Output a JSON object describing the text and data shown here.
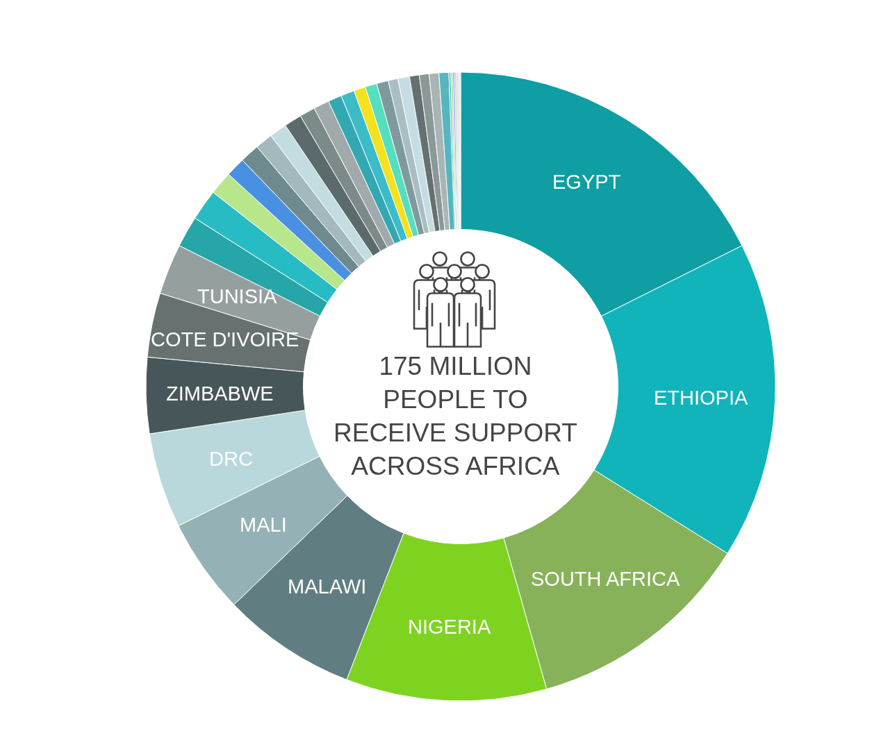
{
  "chart_data": {
    "type": "donut",
    "categories": [
      "EGYPT",
      "ETHIOPIA",
      "SOUTH AFRICA",
      "NIGERIA",
      "MALAWI",
      "MALI",
      "DRC",
      "ZIMBABWE",
      "COTE D'IVOIRE",
      "TUNISIA",
      null,
      null,
      null,
      null,
      null,
      null,
      null,
      null,
      null,
      null,
      null,
      null,
      null,
      null,
      null,
      null,
      null,
      null,
      null,
      null,
      null,
      null,
      null,
      null,
      null,
      null,
      null
    ],
    "values": [
      17.6,
      16.3,
      11.7,
      10.3,
      6.9,
      4.9,
      4.9,
      3.9,
      3.3,
      2.6,
      1.6,
      1.6,
      1.2,
      1.0,
      1.0,
      0.9,
      0.9,
      0.9,
      0.8,
      0.8,
      0.7,
      0.7,
      0.6,
      0.6,
      0.6,
      0.5,
      0.6,
      0.5,
      0.5,
      0.5,
      0.5,
      0.1,
      0.1,
      0.1,
      0.1,
      0.1,
      0.1
    ],
    "colors": [
      "#0e9ea3",
      "#10b4ba",
      "#87b25a",
      "#7ed321",
      "#607d82",
      "#94b1b6",
      "#b8d8dc",
      "#475759",
      "#667170",
      "#969fa0",
      "#26a6a8",
      "#27bcc3",
      "#b8e68a",
      "#4a90e2",
      "#6e8a8e",
      "#a3b9bd",
      "#c3dce0",
      "#5b6b6c",
      "#7c8a8a",
      "#a0aaaa",
      "#34a8b2",
      "#3bbcc8",
      "#f5e11e",
      "#55dfc0",
      "#7f9a9e",
      "#a9bec2",
      "#c5dde2",
      "#657070",
      "#8a9898",
      "#a9b4b4",
      "#55b6bf",
      "#4fc3cc",
      "#a8e08a",
      "#9aa8e8",
      "#c8d0d0",
      "#d0d8d8",
      "#e0e4e4"
    ],
    "annotations": [
      "175 MILLION\nPEOPLE TO\nRECEIVE SUPPORT\nACROSS AFRICA"
    ]
  }
}
